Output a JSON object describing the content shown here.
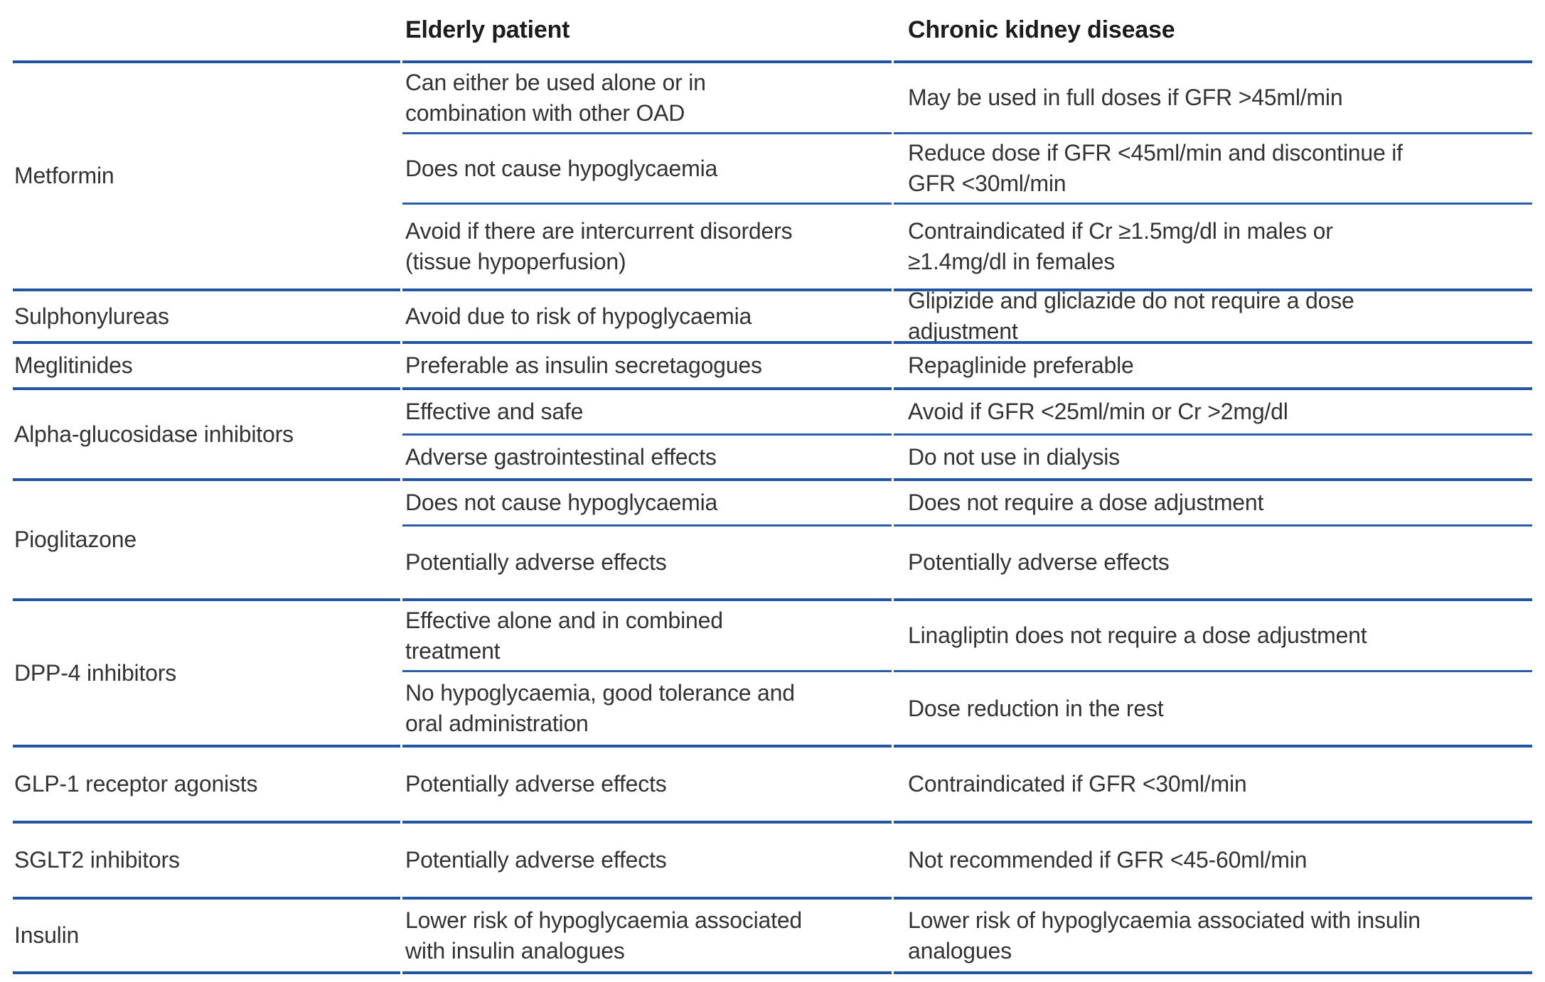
{
  "table": {
    "columns": [
      "",
      "Elderly patient",
      "Chronic kidney disease"
    ],
    "colors": {
      "rule_blue": "#2254a0"
    },
    "groups": [
      {
        "drug": "Metformin",
        "rows": [
          {
            "elderly": "Can either be used alone or in\ncombination with other OAD",
            "ckd": "May be used in full doses if GFR >45ml/min"
          },
          {
            "elderly": "Does not cause hypoglycaemia",
            "ckd": "Reduce dose if GFR <45ml/min and discontinue if\nGFR <30ml/min"
          },
          {
            "elderly": "Avoid if there are intercurrent disorders\n(tissue hypoperfusion)",
            "ckd": "Contraindicated if Cr ≥1.5mg/dl in males or\n≥1.4mg/dl in females"
          }
        ]
      },
      {
        "drug": "Sulphonylureas",
        "rows": [
          {
            "elderly": "Avoid due to risk of hypoglycaemia",
            "ckd": "Glipizide and gliclazide do not require a dose\nadjustment"
          }
        ]
      },
      {
        "drug": "Meglitinides",
        "rows": [
          {
            "elderly": "Preferable as insulin secretagogues",
            "ckd": "Repaglinide preferable"
          }
        ]
      },
      {
        "drug": "Alpha-glucosidase inhibitors",
        "rows": [
          {
            "elderly": "Effective and safe",
            "ckd": "Avoid if GFR <25ml/min or Cr >2mg/dl"
          },
          {
            "elderly": "Adverse gastrointestinal effects",
            "ckd": "Do not use in dialysis"
          }
        ]
      },
      {
        "drug": "Pioglitazone",
        "rows": [
          {
            "elderly": "Does not cause hypoglycaemia",
            "ckd": "Does not require a dose adjustment"
          },
          {
            "elderly": "Potentially adverse effects",
            "ckd": "Potentially adverse effects"
          }
        ]
      },
      {
        "drug": "DPP-4 inhibitors",
        "rows": [
          {
            "elderly": "Effective alone and in combined\ntreatment",
            "ckd": "Linagliptin does not require a dose adjustment"
          },
          {
            "elderly": "No hypoglycaemia, good tolerance and\noral administration",
            "ckd": "Dose reduction in the rest"
          }
        ]
      },
      {
        "drug": "GLP-1 receptor agonists",
        "rows": [
          {
            "elderly": "Potentially adverse effects",
            "ckd": "Contraindicated if GFR <30ml/min"
          }
        ]
      },
      {
        "drug": "SGLT2 inhibitors",
        "rows": [
          {
            "elderly": "Potentially adverse effects",
            "ckd": "Not recommended if GFR <45-60ml/min"
          }
        ]
      },
      {
        "drug": "Insulin",
        "rows": [
          {
            "elderly": "Lower risk of hypoglycaemia associated\nwith insulin analogues",
            "ckd": "Lower risk of hypoglycaemia associated with insulin\nanalogues"
          }
        ]
      }
    ]
  }
}
